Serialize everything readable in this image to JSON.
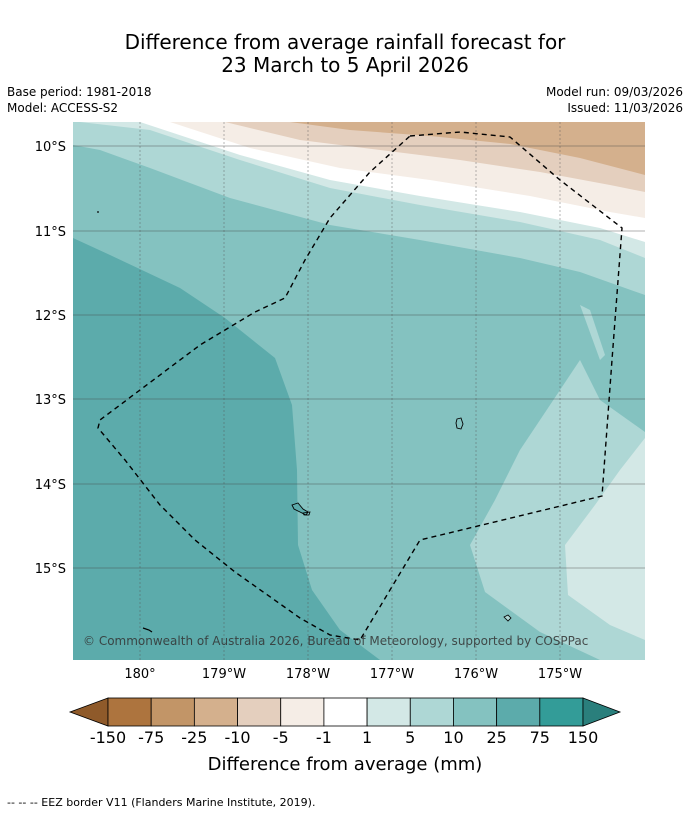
{
  "title_line1": "Difference from average rainfall forecast for",
  "title_line2": "23 March to 5 April 2026",
  "base_period": "Base period: 1981-2018",
  "model": "Model: ACCESS-S2",
  "model_run": "Model run: 09/03/2026",
  "issued": "Issued: 11/03/2026",
  "copyright": "© Commonwealth of Australia 2026, Bureau of Meteorology, supported by COSPPac",
  "footer_note": "-- -- -- EEZ border V11 (Flanders Marine Institute, 2019).",
  "map": {
    "lat_labels": [
      "10°S",
      "11°S",
      "12°S",
      "13°S",
      "14°S",
      "15°S"
    ],
    "lon_labels": [
      "180°",
      "179°W",
      "178°W",
      "177°W",
      "176°W",
      "175°W"
    ]
  },
  "colorbar": {
    "label": "Difference from average (mm)",
    "ticks": [
      "-150",
      "-75",
      "-25",
      "-10",
      "-5",
      "-1",
      "1",
      "5",
      "10",
      "25",
      "75",
      "150"
    ],
    "colors": [
      "#8f5a2a",
      "#ad743e",
      "#c29567",
      "#d4b08d",
      "#e4cfbe",
      "#f5ede6",
      "#ffffff",
      "#d3e8e6",
      "#aed7d5",
      "#84c2c0",
      "#5cabab",
      "#339c98",
      "#2a7f7c"
    ]
  }
}
